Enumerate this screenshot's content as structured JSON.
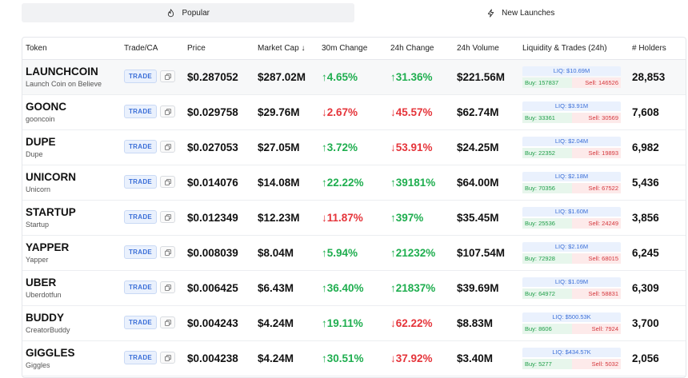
{
  "tabs": [
    {
      "label": "Popular",
      "icon": "flame-icon",
      "active": true
    },
    {
      "label": "New Launches",
      "icon": "lightning-icon",
      "active": false
    }
  ],
  "columns": [
    "Token",
    "Trade/CA",
    "Price",
    "Market Cap ↓",
    "30m Change",
    "24h Change",
    "24h Volume",
    "Liquidity & Trades (24h)",
    "# Holders"
  ],
  "trade_label": "TRADE",
  "colors": {
    "up": "#1fae4f",
    "down": "#e5343a",
    "accent": "#3b6fd8"
  },
  "rows": [
    {
      "symbol": "LAUNCHCOIN",
      "name": "Launch Coin on Believe",
      "price": "$0.287052",
      "mcap": "$287.02M",
      "ch30": "↑4.65%",
      "ch30_dir": "up",
      "ch24": "↑31.36%",
      "ch24_dir": "up",
      "volume": "$221.56M",
      "liq": "LIQ: $10.69M",
      "buy": "Buy: 157837",
      "sell": "Sell: 146526",
      "holders": "28,853"
    },
    {
      "symbol": "GOONC",
      "name": "gooncoin",
      "price": "$0.029758",
      "mcap": "$29.76M",
      "ch30": "↓2.67%",
      "ch30_dir": "down",
      "ch24": "↓45.57%",
      "ch24_dir": "down",
      "volume": "$62.74M",
      "liq": "LIQ: $3.91M",
      "buy": "Buy: 33361",
      "sell": "Sell: 30569",
      "holders": "7,608"
    },
    {
      "symbol": "DUPE",
      "name": "Dupe",
      "price": "$0.027053",
      "mcap": "$27.05M",
      "ch30": "↑3.72%",
      "ch30_dir": "up",
      "ch24": "↓53.91%",
      "ch24_dir": "down",
      "volume": "$24.25M",
      "liq": "LIQ: $2.04M",
      "buy": "Buy: 22352",
      "sell": "Sell: 19893",
      "holders": "6,982"
    },
    {
      "symbol": "UNICORN",
      "name": "Unicorn",
      "price": "$0.014076",
      "mcap": "$14.08M",
      "ch30": "↑22.22%",
      "ch30_dir": "up",
      "ch24": "↑39181%",
      "ch24_dir": "up",
      "volume": "$64.00M",
      "liq": "LIQ: $2.18M",
      "buy": "Buy: 70356",
      "sell": "Sell: 67522",
      "holders": "5,436"
    },
    {
      "symbol": "STARTUP",
      "name": "Startup",
      "price": "$0.012349",
      "mcap": "$12.23M",
      "ch30": "↓11.87%",
      "ch30_dir": "down",
      "ch24": "↑397%",
      "ch24_dir": "up",
      "volume": "$35.45M",
      "liq": "LIQ: $1.60M",
      "buy": "Buy: 25536",
      "sell": "Sell: 24249",
      "holders": "3,856"
    },
    {
      "symbol": "YAPPER",
      "name": "Yapper",
      "price": "$0.008039",
      "mcap": "$8.04M",
      "ch30": "↑5.94%",
      "ch30_dir": "up",
      "ch24": "↑21232%",
      "ch24_dir": "up",
      "volume": "$107.54M",
      "liq": "LIQ: $2.16M",
      "buy": "Buy: 72928",
      "sell": "Sell: 68015",
      "holders": "6,245"
    },
    {
      "symbol": "UBER",
      "name": "Uberdotfun",
      "price": "$0.006425",
      "mcap": "$6.43M",
      "ch30": "↑36.40%",
      "ch30_dir": "up",
      "ch24": "↑21837%",
      "ch24_dir": "up",
      "volume": "$39.69M",
      "liq": "LIQ: $1.09M",
      "buy": "Buy: 64972",
      "sell": "Sell: 58831",
      "holders": "6,309"
    },
    {
      "symbol": "BUDDY",
      "name": "CreatorBuddy",
      "price": "$0.004243",
      "mcap": "$4.24M",
      "ch30": "↑19.11%",
      "ch30_dir": "up",
      "ch24": "↓62.22%",
      "ch24_dir": "down",
      "volume": "$8.83M",
      "liq": "LIQ: $500.53K",
      "buy": "Buy: 8606",
      "sell": "Sell: 7924",
      "holders": "3,700"
    },
    {
      "symbol": "GIGGLES",
      "name": "Giggles",
      "price": "$0.004238",
      "mcap": "$4.24M",
      "ch30": "↑30.51%",
      "ch30_dir": "up",
      "ch24": "↓37.92%",
      "ch24_dir": "down",
      "volume": "$3.40M",
      "liq": "LIQ: $434.57K",
      "buy": "Buy: 5277",
      "sell": "Sell: 5032",
      "holders": "2,056"
    }
  ]
}
